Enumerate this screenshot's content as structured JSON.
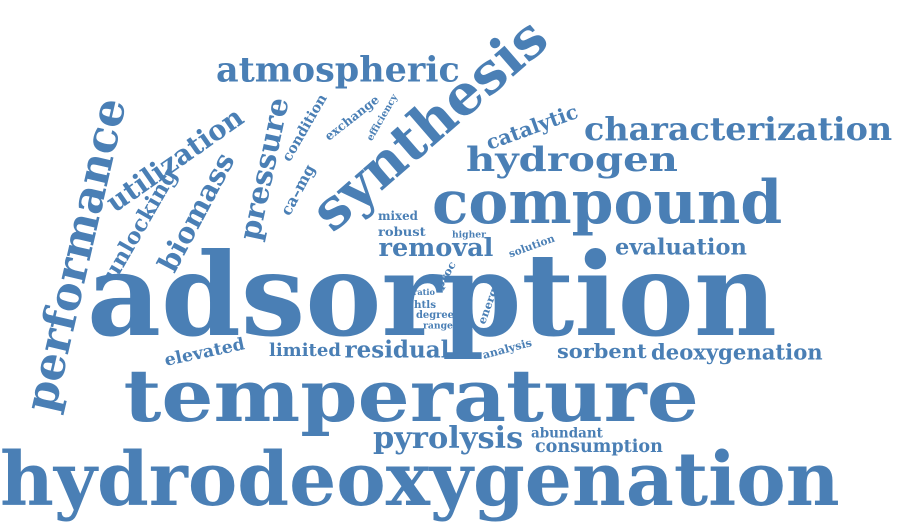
{
  "color": "#4a7fb5",
  "words": [
    "hydrodeoxygenation",
    "adsorption",
    "temperature",
    "synthesis",
    "compound",
    "characterization",
    "atmospheric",
    "performance",
    "hydrogen",
    "pressure",
    "utilization",
    "biomass",
    "unlocking",
    "catalytic",
    "pyrolysis",
    "removal",
    "evaluation",
    "residual",
    "sorbent",
    "deoxygenation",
    "elevated",
    "limited",
    "consumption",
    "abundant",
    "ca–mg",
    "condition",
    "exchange",
    "efficiency",
    "mixed",
    "robust",
    "higher",
    "solution",
    "proc",
    "ratio",
    "htls",
    "degree",
    "range",
    "energy",
    "analysis"
  ]
}
